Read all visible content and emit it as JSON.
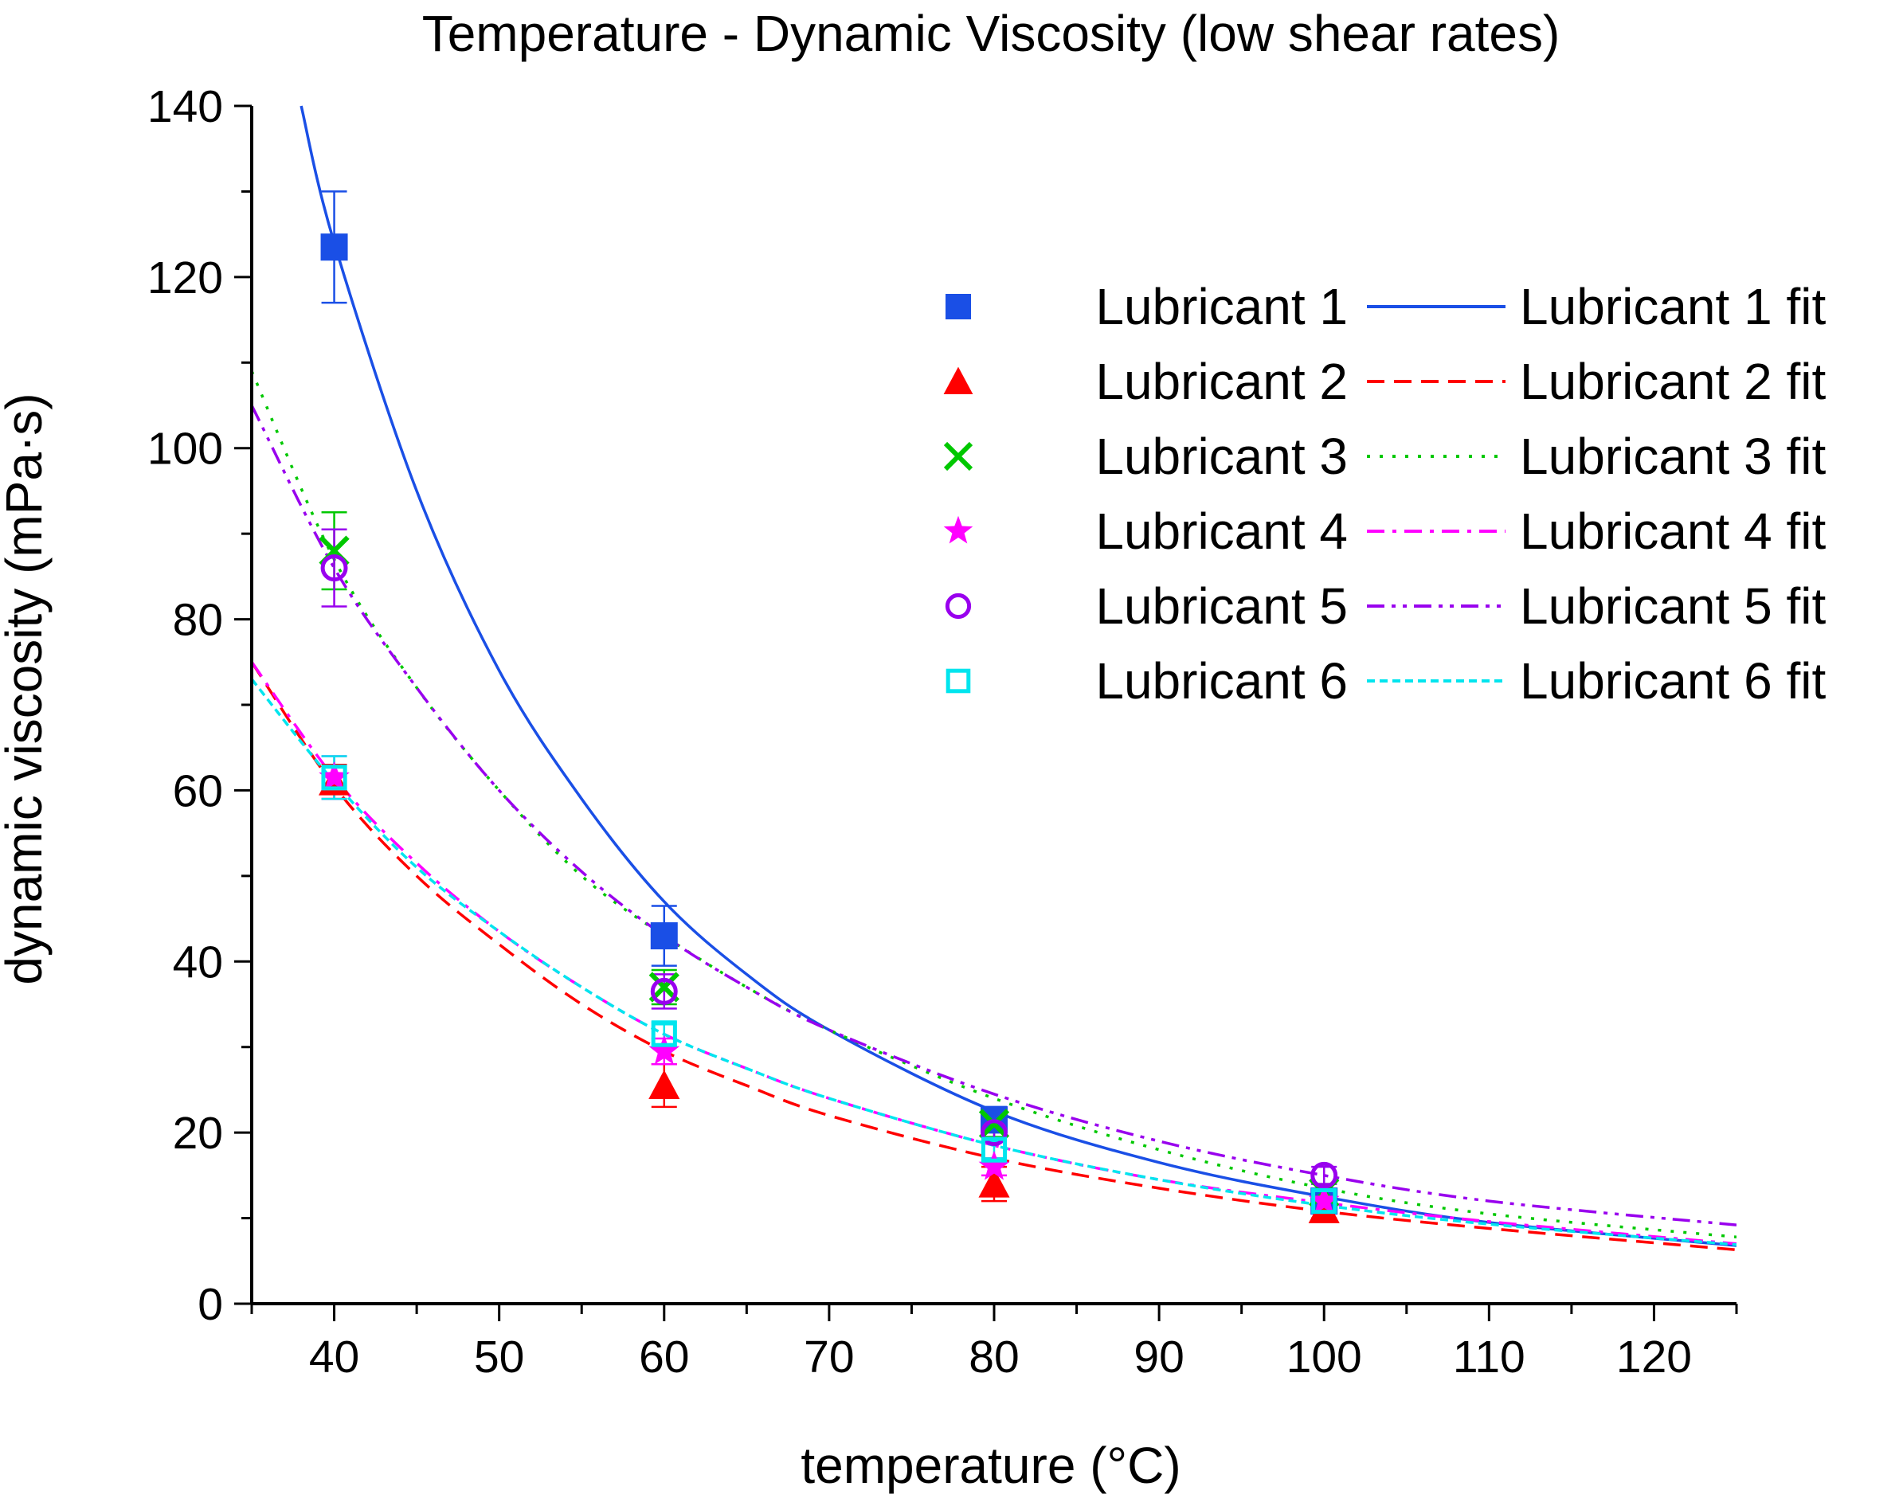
{
  "chart_data": {
    "type": "scatter",
    "title": "Temperature - Dynamic Viscosity (low shear rates)",
    "xlabel": "temperature (°C)",
    "ylabel": "dynamic viscosity (mPa·s)",
    "xlim": [
      35,
      125
    ],
    "ylim": [
      0,
      140
    ],
    "x_ticks": [
      40,
      50,
      60,
      70,
      80,
      90,
      100,
      110,
      120
    ],
    "y_ticks": [
      0,
      20,
      40,
      60,
      80,
      100,
      120,
      140
    ],
    "x_tick_labels": [
      "40",
      "50",
      "60",
      "70",
      "80",
      "90",
      "100",
      "110",
      "120"
    ],
    "y_tick_labels": [
      "0",
      "20",
      "40",
      "60",
      "80",
      "100",
      "120",
      "140"
    ],
    "grid": false,
    "legend_position": "top-right",
    "series": [
      {
        "name": "Lubricant 1",
        "fit_name": "Lubricant 1 fit",
        "color": "#1a4fe6",
        "marker": "filled-square",
        "line_style": "solid",
        "x": [
          40,
          60,
          80,
          100
        ],
        "y": [
          123.5,
          43,
          21.5,
          12
        ],
        "err": [
          6.5,
          3.5,
          1.5,
          1
        ],
        "fit": {
          "x": [
            38,
            40,
            45,
            50,
            55,
            60,
            65,
            70,
            80,
            90,
            100,
            110,
            125
          ],
          "y": [
            140,
            124,
            95,
            74,
            59,
            47,
            38.5,
            32,
            22.5,
            16.5,
            12.5,
            9.5,
            6.8
          ]
        }
      },
      {
        "name": "Lubricant 2",
        "fit_name": "Lubricant 2 fit",
        "color": "#ff0000",
        "marker": "filled-triangle",
        "line_style": "dashed",
        "x": [
          40,
          60,
          80,
          100
        ],
        "y": [
          61,
          25.5,
          14,
          11
        ],
        "err": [
          2,
          2.5,
          2,
          1
        ],
        "fit": {
          "x": [
            35,
            40,
            45,
            50,
            55,
            60,
            65,
            70,
            80,
            90,
            100,
            110,
            125
          ],
          "y": [
            75,
            60.5,
            50,
            42,
            35,
            29.5,
            25.5,
            22,
            17,
            13.5,
            10.8,
            8.8,
            6.3
          ]
        }
      },
      {
        "name": "Lubricant 3",
        "fit_name": "Lubricant 3 fit",
        "color": "#00c800",
        "marker": "cross",
        "line_style": "dotted",
        "x": [
          40,
          60,
          80,
          100
        ],
        "y": [
          88,
          37,
          21,
          13
        ],
        "err": [
          4.5,
          2,
          1.5,
          1
        ],
        "fit": {
          "x": [
            35,
            40,
            45,
            50,
            55,
            60,
            65,
            70,
            80,
            90,
            100,
            110,
            125
          ],
          "y": [
            109,
            87,
            72,
            60,
            50,
            43,
            37,
            32,
            24,
            18,
            13.5,
            10.5,
            7.8
          ]
        }
      },
      {
        "name": "Lubricant 4",
        "fit_name": "Lubricant 4 fit",
        "color": "#ff00ff",
        "marker": "filled-star",
        "line_style": "dash-dot",
        "x": [
          40,
          60,
          80,
          100
        ],
        "y": [
          61.5,
          29.5,
          16,
          12
        ],
        "err": [
          2.5,
          1.5,
          1,
          1
        ],
        "fit": {
          "x": [
            35,
            40,
            45,
            50,
            55,
            60,
            65,
            70,
            80,
            90,
            100,
            110,
            125
          ],
          "y": [
            75,
            61.5,
            51.5,
            43.5,
            37,
            31.5,
            27.5,
            24,
            18.5,
            14.5,
            11.8,
            9.6,
            7
          ]
        }
      },
      {
        "name": "Lubricant 5",
        "fit_name": "Lubricant 5 fit",
        "color": "#9900ee",
        "marker": "open-circle",
        "line_style": "dash-dot-dot",
        "x": [
          40,
          60,
          80,
          100
        ],
        "y": [
          86,
          36.5,
          20,
          15
        ],
        "err": [
          4.5,
          2,
          1,
          1
        ],
        "fit": {
          "x": [
            35,
            40,
            45,
            50,
            55,
            60,
            65,
            70,
            80,
            90,
            100,
            110,
            125
          ],
          "y": [
            105,
            86,
            72,
            60,
            50.5,
            43,
            37,
            32,
            24.5,
            19,
            15,
            12,
            9.2
          ]
        }
      },
      {
        "name": "Lubricant 6",
        "fit_name": "Lubricant 6 fit",
        "color": "#00e5ee",
        "marker": "open-square",
        "line_style": "short-dashed",
        "x": [
          40,
          60,
          80,
          100
        ],
        "y": [
          61.5,
          31.5,
          18,
          12
        ],
        "err": [
          2.5,
          1.5,
          1,
          0.8
        ],
        "fit": {
          "x": [
            35,
            40,
            45,
            50,
            55,
            60,
            65,
            70,
            80,
            90,
            100,
            110,
            125
          ],
          "y": [
            73,
            61,
            51,
            43.5,
            37,
            31.5,
            27.5,
            24,
            18.5,
            14.5,
            11.5,
            9.3,
            6.9
          ]
        }
      }
    ]
  }
}
